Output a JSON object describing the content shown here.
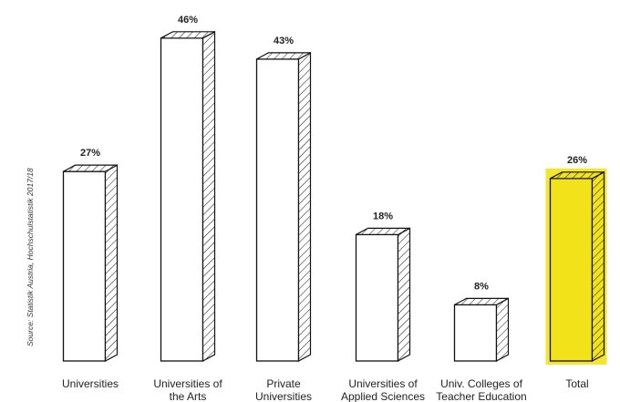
{
  "chart_data": {
    "type": "bar",
    "categories": [
      [
        "Universities"
      ],
      [
        "Universities of",
        "the Arts"
      ],
      [
        "Private",
        "Universities"
      ],
      [
        "Universities of",
        "Applied Sciences"
      ],
      [
        "Univ. Colleges of",
        "Teacher Education"
      ],
      [
        "Total"
      ]
    ],
    "values": [
      27,
      46,
      43,
      18,
      8,
      26
    ],
    "value_labels": [
      "27%",
      "46%",
      "43%",
      "18%",
      "8%",
      "26%"
    ],
    "highlight_index": 5,
    "title": "",
    "xlabel": "",
    "ylabel": "",
    "ylim": [
      0,
      50
    ],
    "grid": false,
    "source": "Source: Statistik Austria, Hochschulstatistik 2017/18",
    "colors": {
      "outline": "#111111",
      "bar_fill": "#ffffff",
      "highlight": "#f2e21a",
      "text": "#222222"
    }
  }
}
